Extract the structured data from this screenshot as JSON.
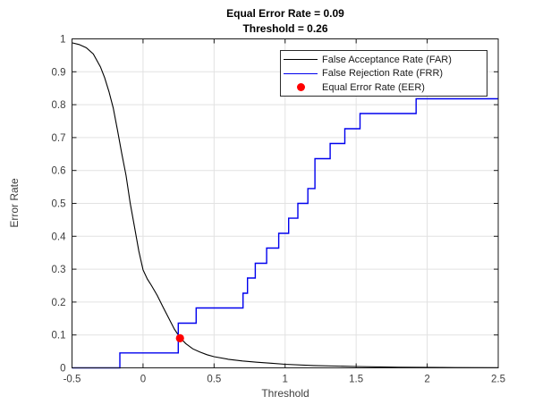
{
  "figure": {
    "background_color": "#ffffff",
    "axis_color": "#1a1a1a",
    "grid_color": "#e2e2e2",
    "tick_label_color": "#3d3d3d"
  },
  "chart_data": {
    "type": "line",
    "title": "Equal Error Rate = 0.09",
    "subtitle": "Threshold = 0.26",
    "xlabel": "Threshold",
    "ylabel": "Error Rate",
    "xlim": [
      -0.5,
      2.5
    ],
    "ylim": [
      0,
      1
    ],
    "xticks": [
      -0.5,
      0,
      0.5,
      1,
      1.5,
      2,
      2.5
    ],
    "xtick_labels": [
      "-0.5",
      "0",
      "0.5",
      "1",
      "1.5",
      "2",
      "2.5"
    ],
    "yticks": [
      0,
      0.1,
      0.2,
      0.3,
      0.4,
      0.5,
      0.6,
      0.7,
      0.8,
      0.9,
      1
    ],
    "ytick_labels": [
      "0",
      "0.1",
      "0.2",
      "0.3",
      "0.4",
      "0.5",
      "0.6",
      "0.7",
      "0.8",
      "0.9",
      "1"
    ],
    "grid": true,
    "legend_position": "top-right",
    "eer_value": 0.09,
    "eer_threshold": 0.26,
    "series": [
      {
        "name": "False Acceptance Rate (FAR)",
        "type": "line",
        "color": "#000000",
        "points": [
          [
            -0.5,
            0.988
          ],
          [
            -0.45,
            0.983
          ],
          [
            -0.4,
            0.973
          ],
          [
            -0.35,
            0.954
          ],
          [
            -0.3,
            0.915
          ],
          [
            -0.27,
            0.882
          ],
          [
            -0.24,
            0.84
          ],
          [
            -0.21,
            0.79
          ],
          [
            -0.18,
            0.723
          ],
          [
            -0.15,
            0.652
          ],
          [
            -0.12,
            0.585
          ],
          [
            -0.09,
            0.5
          ],
          [
            -0.06,
            0.428
          ],
          [
            -0.03,
            0.355
          ],
          [
            0.0,
            0.298
          ],
          [
            0.03,
            0.27
          ],
          [
            0.06,
            0.25
          ],
          [
            0.1,
            0.22
          ],
          [
            0.14,
            0.185
          ],
          [
            0.18,
            0.152
          ],
          [
            0.22,
            0.118
          ],
          [
            0.26,
            0.092
          ],
          [
            0.3,
            0.074
          ],
          [
            0.35,
            0.058
          ],
          [
            0.4,
            0.048
          ],
          [
            0.45,
            0.04
          ],
          [
            0.5,
            0.034
          ],
          [
            0.6,
            0.026
          ],
          [
            0.7,
            0.021
          ],
          [
            0.8,
            0.017
          ],
          [
            0.9,
            0.014
          ],
          [
            1.0,
            0.011
          ],
          [
            1.2,
            0.007
          ],
          [
            1.5,
            0.004
          ],
          [
            1.8,
            0.002
          ],
          [
            2.1,
            0.001
          ],
          [
            2.5,
            0.0005
          ]
        ]
      },
      {
        "name": "False Rejection Rate (FRR)",
        "type": "step",
        "color": "#0000ee",
        "points": [
          [
            -0.5,
            0.0
          ],
          [
            -0.163,
            0.0
          ],
          [
            -0.163,
            0.0455
          ],
          [
            0.248,
            0.0455
          ],
          [
            0.248,
            0.136
          ],
          [
            0.374,
            0.136
          ],
          [
            0.374,
            0.182
          ],
          [
            0.704,
            0.182
          ],
          [
            0.704,
            0.227
          ],
          [
            0.735,
            0.227
          ],
          [
            0.735,
            0.273
          ],
          [
            0.79,
            0.273
          ],
          [
            0.79,
            0.318
          ],
          [
            0.87,
            0.318
          ],
          [
            0.87,
            0.364
          ],
          [
            0.955,
            0.364
          ],
          [
            0.955,
            0.409
          ],
          [
            1.025,
            0.409
          ],
          [
            1.025,
            0.455
          ],
          [
            1.09,
            0.455
          ],
          [
            1.09,
            0.5
          ],
          [
            1.16,
            0.5
          ],
          [
            1.16,
            0.545
          ],
          [
            1.21,
            0.545
          ],
          [
            1.21,
            0.636
          ],
          [
            1.317,
            0.636
          ],
          [
            1.317,
            0.682
          ],
          [
            1.42,
            0.682
          ],
          [
            1.42,
            0.727
          ],
          [
            1.527,
            0.727
          ],
          [
            1.527,
            0.773
          ],
          [
            1.922,
            0.773
          ],
          [
            1.922,
            0.818
          ],
          [
            2.5,
            0.818
          ]
        ]
      },
      {
        "name": "Equal Error Rate (EER)",
        "type": "scatter",
        "color": "#ff0000",
        "points": [
          [
            0.26,
            0.09
          ]
        ]
      }
    ]
  }
}
